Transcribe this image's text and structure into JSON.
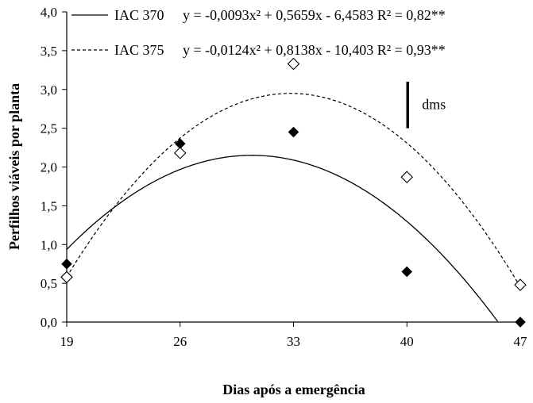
{
  "chart_data": {
    "type": "scatter",
    "xlabel": "Dias após a emergência",
    "ylabel": "Perfilhos viáveis  por planta",
    "xlim": [
      19,
      47
    ],
    "ylim": [
      0,
      4
    ],
    "xticks": [
      19,
      26,
      33,
      40,
      47
    ],
    "xtick_labels": [
      "19",
      "26",
      "33",
      "40",
      "47"
    ],
    "yticks": [
      0,
      0.5,
      1,
      1.5,
      2,
      2.5,
      3,
      3.5,
      4
    ],
    "ytick_labels": [
      "0,0",
      "0,5",
      "1,0",
      "1,5",
      "2,0",
      "2,5",
      "3,0",
      "3,5",
      "4,0"
    ],
    "grid": false,
    "legend_position": "top",
    "series": [
      {
        "name": "IAC 370",
        "marker": "filled-diamond",
        "line_style": "solid",
        "color": "#000000",
        "equation_label": "y = -0,0093x² + 0,5659x - 6,4583 R² = 0,82**",
        "coefficients": {
          "a": -0.0093,
          "b": 0.5659,
          "c": -6.4583
        },
        "points": [
          {
            "x": 19,
            "y": 0.75
          },
          {
            "x": 26,
            "y": 2.3
          },
          {
            "x": 33,
            "y": 2.45
          },
          {
            "x": 40,
            "y": 0.65
          },
          {
            "x": 47,
            "y": 0.0
          }
        ]
      },
      {
        "name": "IAC 375",
        "marker": "open-diamond",
        "line_style": "dashed",
        "color": "#000000",
        "equation_label": "y = -0,0124x² + 0,8138x - 10,403 R² = 0,93**",
        "coefficients": {
          "a": -0.0124,
          "b": 0.8138,
          "c": -10.403
        },
        "points": [
          {
            "x": 19,
            "y": 0.58
          },
          {
            "x": 26,
            "y": 2.18
          },
          {
            "x": 33,
            "y": 3.33
          },
          {
            "x": 40,
            "y": 1.87
          },
          {
            "x": 47,
            "y": 0.48
          }
        ]
      }
    ],
    "annotation": {
      "label": "dms",
      "x": 40,
      "y_from": 2.5,
      "y_to": 3.1
    }
  }
}
